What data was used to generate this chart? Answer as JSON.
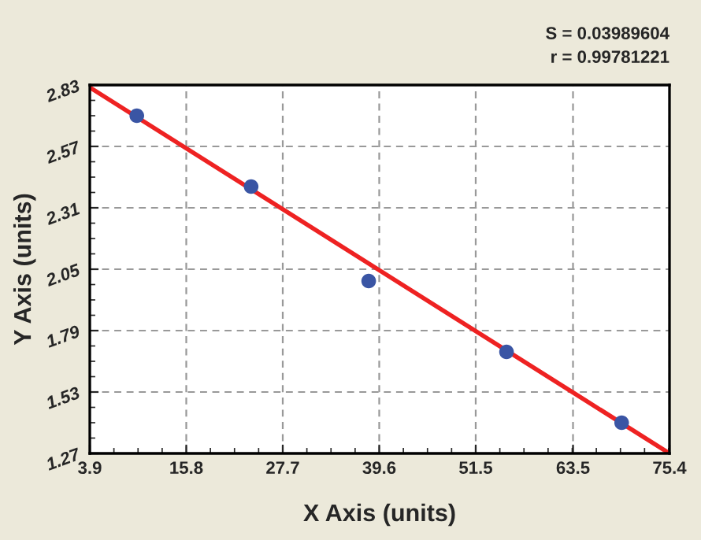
{
  "chart_data": {
    "type": "scatter",
    "xlabel": "X Axis (units)",
    "ylabel": "Y Axis (units)",
    "annotations": [
      "S = 0.03989604",
      "r = 0.99781221"
    ],
    "series": [
      {
        "marker": "circle",
        "color": "#3a55a4",
        "x": [
          9.7,
          23.8,
          38.3,
          55.3,
          69.5
        ],
        "values": [
          2.7,
          2.4,
          2.0,
          1.7,
          1.4
        ]
      },
      {
        "type": "line",
        "color": "#ee2222",
        "x": [
          3.9,
          75.4
        ],
        "values": [
          2.82,
          1.27
        ]
      }
    ],
    "xlim": [
      3.9,
      75.4
    ],
    "xticks": [
      3.9,
      15.8,
      27.7,
      39.6,
      51.5,
      63.5,
      75.4
    ],
    "ylim": [
      1.27,
      2.83
    ],
    "yticks": [
      1.27,
      1.53,
      1.79,
      2.05,
      2.31,
      2.57,
      2.83
    ],
    "grid": true
  }
}
